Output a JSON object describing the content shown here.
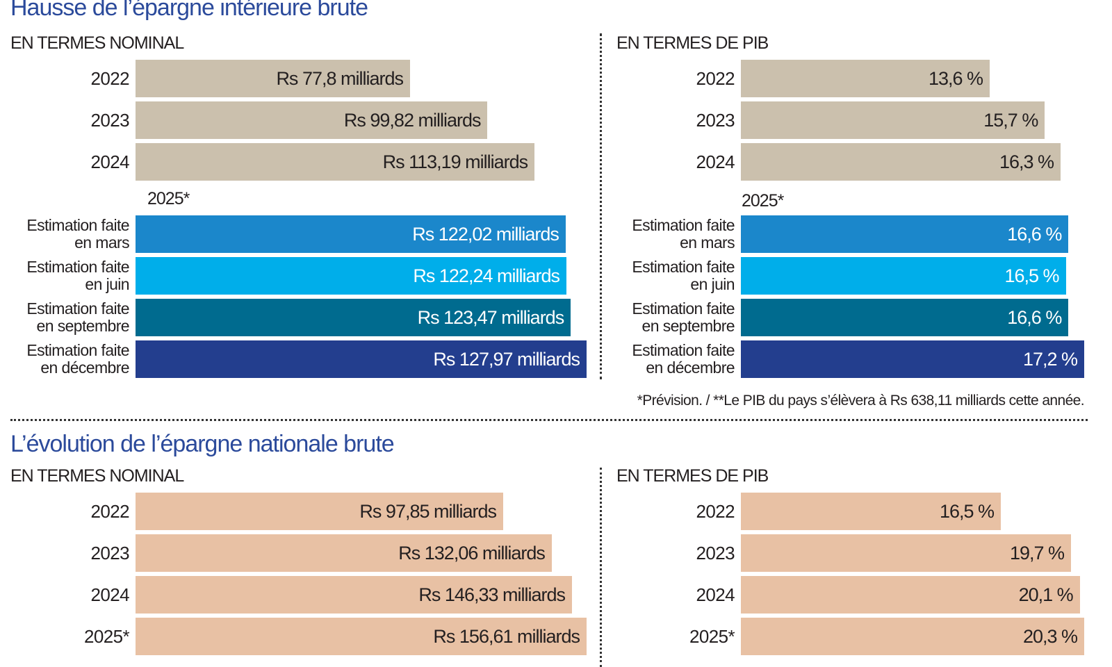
{
  "chart_data": [
    {
      "type": "bar",
      "title": "Hausse de l’épargne intérieure brute",
      "subtitle": "EN TERMES NOMINAL",
      "group_label": "2025*",
      "categories": [
        "2022",
        "2023",
        "2024",
        "Estimation faite en mars",
        "Estimation faite en juin",
        "Estimation faite en septembre",
        "Estimation faite en décembre"
      ],
      "values": [
        77.8,
        99.82,
        113.19,
        122.02,
        122.24,
        123.47,
        127.97
      ],
      "labels": [
        "Rs 77,8 milliards",
        "Rs 99,82 milliards",
        "Rs 113,19 milliards",
        "Rs 122,02 milliards",
        "Rs 122,24 milliards",
        "Rs 123,47 milliards",
        "Rs 127,97 milliards"
      ],
      "unit": "Rs milliards",
      "colors": [
        "#cbc0ad",
        "#cbc0ad",
        "#cbc0ad",
        "#1b87cb",
        "#00aeea",
        "#006b8f",
        "#233e8e"
      ]
    },
    {
      "type": "bar",
      "subtitle": "EN TERMES DE PIB",
      "group_label": "2025*",
      "categories": [
        "2022",
        "2023",
        "2024",
        "Estimation faite en mars",
        "Estimation faite en juin",
        "Estimation faite en septembre",
        "Estimation faite en décembre"
      ],
      "values": [
        13.6,
        15.7,
        16.3,
        16.6,
        16.5,
        16.6,
        17.2
      ],
      "labels": [
        "13,6 %",
        "15,7 %",
        "16,3 %",
        "16,6 %",
        "16,5 %",
        "16,6 %",
        "17,2 %"
      ],
      "unit": "%",
      "colors": [
        "#cbc0ad",
        "#cbc0ad",
        "#cbc0ad",
        "#1b87cb",
        "#00aeea",
        "#006b8f",
        "#233e8e"
      ]
    },
    {
      "type": "bar",
      "title": "L’évolution de l’épargne nationale brute",
      "subtitle": "EN TERMES NOMINAL",
      "categories": [
        "2022",
        "2023",
        "2024",
        "2025*"
      ],
      "values": [
        97.85,
        132.06,
        146.33,
        156.61
      ],
      "labels": [
        "Rs 97,85 milliards",
        "Rs 132,06 milliards",
        "Rs 146,33 milliards",
        "Rs 156,61 milliards"
      ],
      "unit": "Rs milliards",
      "colors": [
        "#e8c1a4",
        "#e8c1a4",
        "#e8c1a4",
        "#e8c1a4"
      ]
    },
    {
      "type": "bar",
      "subtitle": "EN TERMES DE PIB",
      "categories": [
        "2022",
        "2023",
        "2024",
        "2025*"
      ],
      "values": [
        16.5,
        19.7,
        20.1,
        20.3
      ],
      "labels": [
        "16,5 %",
        "19,7 %",
        "20,1 %",
        "20,3 %"
      ],
      "unit": "%",
      "colors": [
        "#e8c1a4",
        "#e8c1a4",
        "#e8c1a4",
        "#e8c1a4"
      ]
    }
  ],
  "footnote": "*Prévision. / **Le PIB du pays s’élèvera à Rs 638,11 milliards cette année.",
  "text_colors": {
    "title": "#2b4a9b",
    "dark": "#231f20",
    "light": "#ffffff"
  }
}
